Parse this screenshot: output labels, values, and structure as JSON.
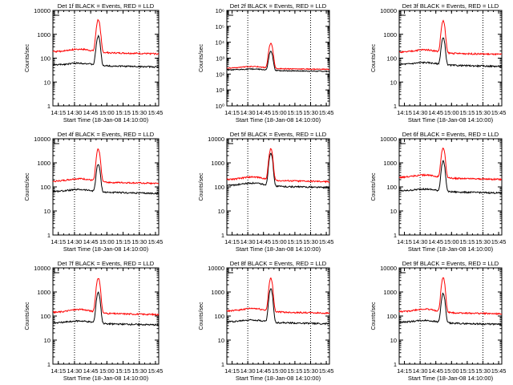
{
  "chart_data": [
    {
      "type": "line",
      "title": "Det 1f BLACK = Events, RED = LLD",
      "ylabel": "Counts/sec",
      "xlabel": "Start Time (18-Jan-08 14:10:00)",
      "yscale": "log",
      "ylim": [
        1,
        10000
      ],
      "ytick_labels": [
        "1",
        "10",
        "100",
        "1000",
        "10000"
      ],
      "xlim": [
        "14:10",
        "15:48"
      ],
      "xtick_labels": [
        "14:15",
        "14:30",
        "14:45",
        "15:00",
        "15:15",
        "15:30",
        "15:45"
      ],
      "dotted_vlines": [
        "14:30",
        "15:30"
      ],
      "series": [
        {
          "color": "#000000",
          "base": 52,
          "peak": 780,
          "bump": 1.25
        },
        {
          "color": "#ff0000",
          "base": 185,
          "peak": 3900,
          "bump": 1.35
        }
      ]
    },
    {
      "type": "line",
      "title": "Det 2f BLACK = Events, RED = LLD",
      "ylabel": "Counts/sec",
      "xlabel": "Start Time (18-Jan-08 14:10:00)",
      "yscale": "log",
      "ylim": [
        1,
        1000000
      ],
      "ytick_labels": [
        "10⁰",
        "10¹",
        "10²",
        "10³",
        "10⁴",
        "10⁵",
        "10⁶"
      ],
      "xlim": [
        "14:10",
        "15:48"
      ],
      "xtick_labels": [
        "14:15",
        "14:30",
        "14:45",
        "15:00",
        "15:15",
        "15:30",
        "15:45"
      ],
      "dotted_vlines": [
        "14:30",
        "15:30"
      ],
      "series": [
        {
          "color": "#000000",
          "base": 180,
          "peak": 2500,
          "bump": 1.2
        },
        {
          "color": "#ff0000",
          "base": 240,
          "peak": 8000,
          "bump": 1.3
        }
      ]
    },
    {
      "type": "line",
      "title": "Det 3f BLACK = Events, RED = LLD",
      "ylabel": "Counts/sec",
      "xlabel": "Start Time (18-Jan-08 14:10:00)",
      "yscale": "log",
      "ylim": [
        1,
        10000
      ],
      "ytick_labels": [
        "1",
        "10",
        "100",
        "1000",
        "10000"
      ],
      "xlim": [
        "14:10",
        "15:48"
      ],
      "xtick_labels": [
        "14:15",
        "14:30",
        "14:45",
        "15:00",
        "15:15",
        "15:30",
        "15:45"
      ],
      "dotted_vlines": [
        "14:30",
        "15:30"
      ],
      "series": [
        {
          "color": "#000000",
          "base": 55,
          "peak": 650,
          "bump": 1.25
        },
        {
          "color": "#ff0000",
          "base": 175,
          "peak": 3500,
          "bump": 1.35
        }
      ]
    },
    {
      "type": "line",
      "title": "Det 4f BLACK = Events, RED = LLD",
      "ylabel": "Counts/sec",
      "xlabel": "Start Time (18-Jan-08 14:10:00)",
      "yscale": "log",
      "ylim": [
        1,
        10000
      ],
      "ytick_labels": [
        "1",
        "10",
        "100",
        "1000",
        "10000"
      ],
      "xlim": [
        "14:10",
        "15:48"
      ],
      "xtick_labels": [
        "14:15",
        "14:30",
        "14:45",
        "15:00",
        "15:15",
        "15:30",
        "15:45"
      ],
      "dotted_vlines": [
        "14:30",
        "15:30"
      ],
      "series": [
        {
          "color": "#000000",
          "base": 65,
          "peak": 800,
          "bump": 1.25
        },
        {
          "color": "#ff0000",
          "base": 170,
          "peak": 3500,
          "bump": 1.35
        }
      ]
    },
    {
      "type": "line",
      "title": "Det 5f BLACK = Events, RED = LLD",
      "ylabel": "Counts/sec",
      "xlabel": "Start Time (18-Jan-08 14:10:00)",
      "yscale": "log",
      "ylim": [
        1,
        10000
      ],
      "ytick_labels": [
        "1",
        "10",
        "100",
        "1000",
        "10000"
      ],
      "xlim": [
        "14:10",
        "15:48"
      ],
      "xtick_labels": [
        "14:15",
        "14:30",
        "14:45",
        "15:00",
        "15:15",
        "15:30",
        "15:45"
      ],
      "dotted_vlines": [
        "14:30",
        "15:30"
      ],
      "series": [
        {
          "color": "#000000",
          "base": 115,
          "peak": 2500,
          "bump": 1.3
        },
        {
          "color": "#ff0000",
          "base": 200,
          "peak": 3700,
          "bump": 1.35
        }
      ]
    },
    {
      "type": "line",
      "title": "Det 6f BLACK = Events, RED = LLD",
      "ylabel": "Counts/sec",
      "xlabel": "Start Time (18-Jan-08 14:10:00)",
      "yscale": "log",
      "ylim": [
        1,
        10000
      ],
      "ytick_labels": [
        "1",
        "10",
        "100",
        "1000",
        "10000"
      ],
      "xlim": [
        "14:10",
        "15:48"
      ],
      "xtick_labels": [
        "14:15",
        "14:30",
        "14:45",
        "15:00",
        "15:15",
        "15:30",
        "15:45"
      ],
      "dotted_vlines": [
        "14:30",
        "15:30"
      ],
      "series": [
        {
          "color": "#000000",
          "base": 68,
          "peak": 1100,
          "bump": 1.25
        },
        {
          "color": "#ff0000",
          "base": 250,
          "peak": 4000,
          "bump": 1.3
        }
      ]
    },
    {
      "type": "line",
      "title": "Det 7f BLACK = Events, RED = LLD",
      "ylabel": "Counts/sec",
      "xlabel": "Start Time (18-Jan-08 14:10:00)",
      "yscale": "log",
      "ylim": [
        1,
        10000
      ],
      "ytick_labels": [
        "1",
        "10",
        "100",
        "1000",
        "10000"
      ],
      "xlim": [
        "14:10",
        "15:48"
      ],
      "xtick_labels": [
        "14:15",
        "14:30",
        "14:45",
        "15:00",
        "15:15",
        "15:30",
        "15:45"
      ],
      "dotted_vlines": [
        "14:30",
        "15:30"
      ],
      "series": [
        {
          "color": "#000000",
          "base": 52,
          "peak": 900,
          "bump": 1.25
        },
        {
          "color": "#ff0000",
          "base": 140,
          "peak": 3700,
          "bump": 1.4
        }
      ]
    },
    {
      "type": "line",
      "title": "Det 8f BLACK = Events, RED = LLD",
      "ylabel": "Counts/sec",
      "xlabel": "Start Time (18-Jan-08 14:10:00)",
      "yscale": "log",
      "ylim": [
        1,
        10000
      ],
      "ytick_labels": [
        "1",
        "10",
        "100",
        "1000",
        "10000"
      ],
      "xlim": [
        "14:10",
        "15:48"
      ],
      "xtick_labels": [
        "14:15",
        "14:30",
        "14:45",
        "15:00",
        "15:15",
        "15:30",
        "15:45"
      ],
      "dotted_vlines": [
        "14:30",
        "15:30"
      ],
      "series": [
        {
          "color": "#000000",
          "base": 58,
          "peak": 1300,
          "bump": 1.25
        },
        {
          "color": "#ff0000",
          "base": 160,
          "peak": 3500,
          "bump": 1.35
        }
      ]
    },
    {
      "type": "line",
      "title": "Det 9f BLACK = Events, RED = LLD",
      "ylabel": "Counts/sec",
      "xlabel": "Start Time (18-Jan-08 14:10:00)",
      "yscale": "log",
      "ylim": [
        1,
        10000
      ],
      "ytick_labels": [
        "1",
        "10",
        "100",
        "1000",
        "10000"
      ],
      "xlim": [
        "14:10",
        "15:48"
      ],
      "xtick_labels": [
        "14:15",
        "14:30",
        "14:45",
        "15:00",
        "15:15",
        "15:30",
        "15:45"
      ],
      "dotted_vlines": [
        "14:30",
        "15:30"
      ],
      "series": [
        {
          "color": "#000000",
          "base": 55,
          "peak": 800,
          "bump": 1.25
        },
        {
          "color": "#ff0000",
          "base": 150,
          "peak": 3700,
          "bump": 1.35
        }
      ]
    }
  ]
}
